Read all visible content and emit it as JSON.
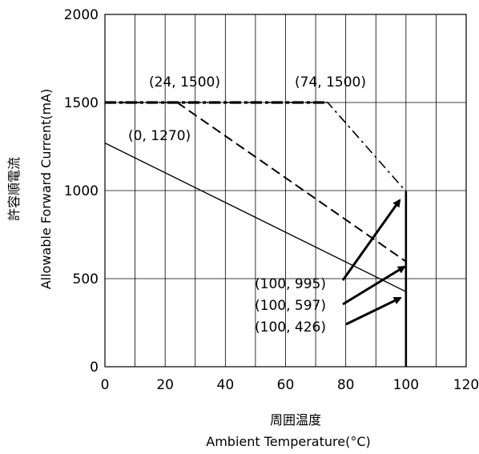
{
  "chart_data": {
    "type": "line",
    "x_axis": {
      "label_ja": "周囲温度",
      "label_en": "Ambient Temperature(°C)",
      "range": [
        0,
        120
      ],
      "ticks": [
        0,
        20,
        40,
        60,
        80,
        100,
        120
      ],
      "tick_labels": [
        "0",
        "20",
        "40",
        "60",
        "80",
        "100",
        "120"
      ],
      "minor_grid_step": 10
    },
    "y_axis": {
      "label_ja": "許容順電流",
      "label_en": "Allowable Forward Current(mA)",
      "range": [
        0,
        2000
      ],
      "ticks": [
        0,
        500,
        1000,
        1500,
        2000
      ],
      "tick_labels": [
        "0",
        "500",
        "1000",
        "1500",
        "2000"
      ]
    },
    "grid": true,
    "series": [
      {
        "style": "solid",
        "x": [
          0,
          100,
          100
        ],
        "y": [
          1270,
          426,
          0
        ]
      },
      {
        "style": "dashed",
        "x": [
          0,
          24,
          100,
          100
        ],
        "y": [
          1500,
          1500,
          597,
          0
        ]
      },
      {
        "style": "dashdot",
        "x": [
          0,
          74,
          100,
          100
        ],
        "y": [
          1500,
          1500,
          995,
          0
        ]
      }
    ],
    "annotations": [
      {
        "text": "(0, 1270)"
      },
      {
        "text": "(24, 1500)"
      },
      {
        "text": "(74, 1500)"
      },
      {
        "text": "(100, 995)"
      },
      {
        "text": "(100, 597)"
      },
      {
        "text": "(100, 426)"
      }
    ]
  }
}
